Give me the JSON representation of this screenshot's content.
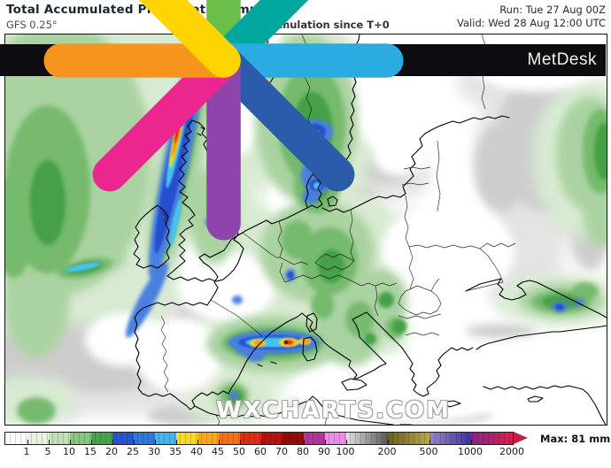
{
  "header": {
    "title": "Total Accumulated Precipitation (mm)",
    "model": "GFS 0.25°",
    "subtitle": "Total accumulation since T+0",
    "run_label": "Run: Tue 27 Aug 00Z",
    "valid_label": "Valid: Wed 28 Aug 12:00 UTC"
  },
  "branding": {
    "logo_text": "MetDesk",
    "watermark": "WXCHARTS.COM"
  },
  "colorbar": {
    "max_label": "Max: 81 mm",
    "ticks": [
      "1",
      "5",
      "10",
      "15",
      "20",
      "25",
      "30",
      "35",
      "40",
      "45",
      "50",
      "60",
      "70",
      "80",
      "90",
      "100",
      "200",
      "500",
      "1000",
      "2000"
    ],
    "segments": [
      {
        "w": 25,
        "c": "#ffffff"
      },
      {
        "w": 24,
        "c": "#e8f2e3"
      },
      {
        "w": 24,
        "c": "#c2e0b6"
      },
      {
        "w": 24,
        "c": "#8bc583"
      },
      {
        "w": 24,
        "c": "#47a34d"
      },
      {
        "w": 24,
        "c": "#2b55d0"
      },
      {
        "w": 24,
        "c": "#2f78dd"
      },
      {
        "w": 24,
        "c": "#45b4ea"
      },
      {
        "w": 24,
        "c": "#f5d92b"
      },
      {
        "w": 24,
        "c": "#f8a81f"
      },
      {
        "w": 24,
        "c": "#f3701a"
      },
      {
        "w": 24,
        "c": "#dd2d15"
      },
      {
        "w": 24,
        "c": "#b5140d"
      },
      {
        "w": 24,
        "c": "#930c08"
      },
      {
        "w": 24,
        "c": "#ae379a"
      },
      {
        "w": 24,
        "c": "#ea8fe6"
      },
      {
        "w": 47,
        "c": "#e2e2e2",
        "c2": "#585858"
      },
      {
        "w": 47,
        "c": "#6b5d1f",
        "c2": "#b9a84c"
      },
      {
        "w": 47,
        "c": "#9b86c0",
        "c2": "#42309f"
      },
      {
        "w": 47,
        "c": "#86278a",
        "c2": "#d92048"
      }
    ],
    "arrow_color": "#c01f45"
  },
  "chart_data": {
    "type": "heatmap",
    "title": "Total Accumulated Precipitation (mm)",
    "parameter": "Total accumulated precipitation",
    "units": "mm",
    "model": "GFS 0.25°",
    "accumulation": "Total accumulation since T+0",
    "run": "Tue 27 Aug 00Z",
    "valid": "Wed 28 Aug 12:00 UTC",
    "region": "Europe",
    "max_value_mm": 81,
    "scale_mm": [
      1,
      5,
      10,
      15,
      20,
      25,
      30,
      35,
      40,
      45,
      50,
      60,
      70,
      80,
      90,
      100,
      200,
      500,
      1000,
      2000
    ],
    "scale_colors": [
      "#ffffff",
      "#e8f2e3",
      "#c2e0b6",
      "#8bc583",
      "#47a34d",
      "#2b55d0",
      "#2f78dd",
      "#45b4ea",
      "#f5d92b",
      "#f8a81f",
      "#f3701a",
      "#dd2d15",
      "#b5140d",
      "#930c08",
      "#ae379a",
      "#ea8fe6",
      "#e2e2e2-#585858",
      "#6b5d1f-#b9a84c",
      "#9b86c0-#42309f",
      "#86278a-#d92048"
    ],
    "notable_features": [
      {
        "area": "NE Atlantic west of Scotland",
        "description": "narrow NNE-SSW frontal rain band with embedded core",
        "approx_max_mm": 70
      },
      {
        "area": "Western Mediterranean near Balearic Islands / NE Spain",
        "description": "convective cluster containing the overall maximum",
        "approx_max_mm": 81
      },
      {
        "area": "Southern Norway, Denmark and southern Sweden",
        "description": "widespread rain area",
        "approx_max_mm": 30
      },
      {
        "area": "Alps and Central Europe",
        "description": "scattered showers",
        "approx_max_mm": 15
      },
      {
        "area": "NE Turkey / Caucasus",
        "description": "band of rain along mountains",
        "approx_max_mm": 25
      }
    ]
  }
}
